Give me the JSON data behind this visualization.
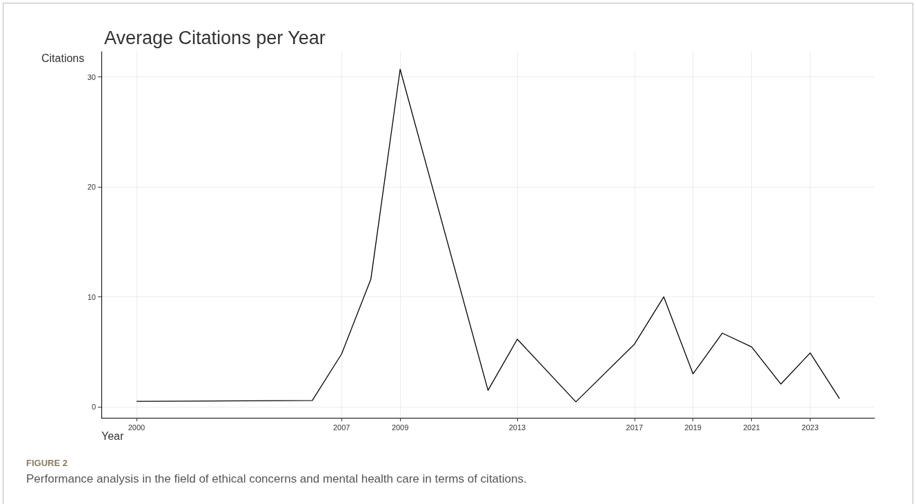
{
  "chart_data": {
    "type": "line",
    "title": "Average Citations per Year",
    "xlabel": "Year",
    "ylabel": "Citations",
    "x": [
      2000,
      2006,
      2007,
      2008,
      2009,
      2012,
      2013,
      2015,
      2017,
      2018,
      2019,
      2020,
      2021,
      2022,
      2023,
      2024
    ],
    "series": [
      {
        "color": "#000000",
        "values": [
          0.5,
          0.57,
          4.8,
          11.6,
          30.7,
          1.5,
          6.15,
          0.45,
          5.7,
          10.0,
          3.0,
          6.7,
          5.45,
          2.07,
          4.9,
          0.75
        ]
      }
    ],
    "xlim": [
      1998.8,
      2025.2
    ],
    "xticks": [
      2000,
      2007,
      2009,
      2013,
      2017,
      2019,
      2021,
      2023
    ],
    "ylim": [
      -1,
      32.3
    ],
    "yticks": [
      0,
      10,
      20,
      30
    ],
    "grid": true,
    "marker": "none",
    "line_style": "solid",
    "annotations": [
      "FIGURE 2",
      "Performance analysis in the field of ethical concerns and mental health care in terms of citations."
    ]
  }
}
